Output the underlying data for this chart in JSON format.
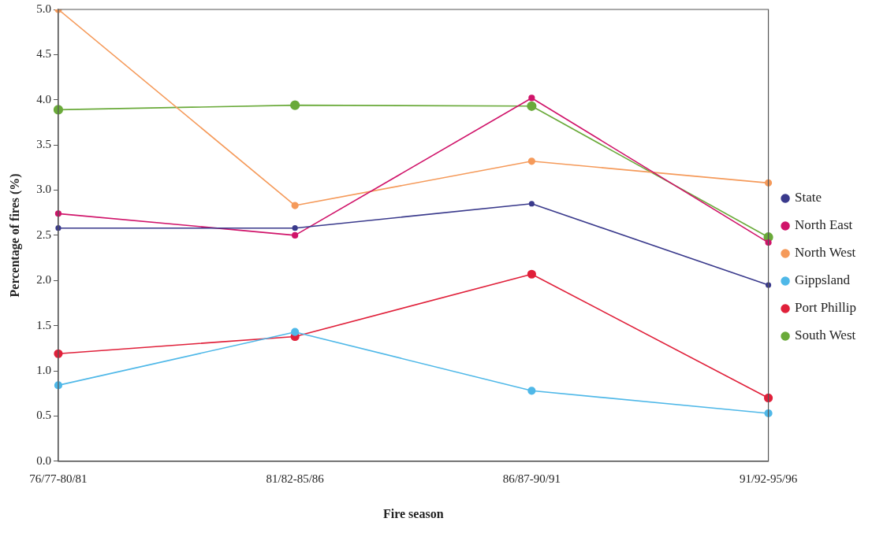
{
  "chart_data": {
    "type": "line",
    "xlabel": "Fire season",
    "ylabel": "Percentage of fires (%)",
    "categories": [
      "76/77-80/81",
      "81/82-85/86",
      "86/87-90/91",
      "91/92-95/96"
    ],
    "series": [
      {
        "name": "State",
        "color": "#3a3a8c",
        "values": [
          2.58,
          2.58,
          2.85,
          1.95
        ]
      },
      {
        "name": "North East",
        "color": "#d0146a",
        "values": [
          2.74,
          2.5,
          4.02,
          2.42
        ]
      },
      {
        "name": "North West",
        "color": "#f59a5a",
        "values": [
          5.0,
          2.83,
          3.32,
          3.08
        ]
      },
      {
        "name": "Gippsland",
        "color": "#4fb8e8",
        "values": [
          0.84,
          1.43,
          0.78,
          0.53
        ]
      },
      {
        "name": "Port Phillip",
        "color": "#e0203a",
        "values": [
          1.19,
          1.38,
          2.07,
          0.7
        ]
      },
      {
        "name": "South West",
        "color": "#6aaa3a",
        "values": [
          3.89,
          3.94,
          3.93,
          2.48
        ]
      }
    ],
    "ylim": [
      0,
      5
    ],
    "yticks": [
      {
        "value": 0,
        "label": "0.0"
      },
      {
        "value": 0.5,
        "label": "0.5"
      },
      {
        "value": 1,
        "label": "1.0"
      },
      {
        "value": 1.5,
        "label": "1.5"
      },
      {
        "value": 2,
        "label": "2.0"
      },
      {
        "value": 2.5,
        "label": "2.5"
      },
      {
        "value": 3,
        "label": "3.0"
      },
      {
        "value": 3.5,
        "label": "3.5"
      },
      {
        "value": 4,
        "label": "4.0"
      },
      {
        "value": 4.5,
        "label": "4.5"
      },
      {
        "value": 5,
        "label": "5.0"
      }
    ],
    "legend": "right",
    "grid": false,
    "marker": "circle",
    "line_style": "solid"
  }
}
